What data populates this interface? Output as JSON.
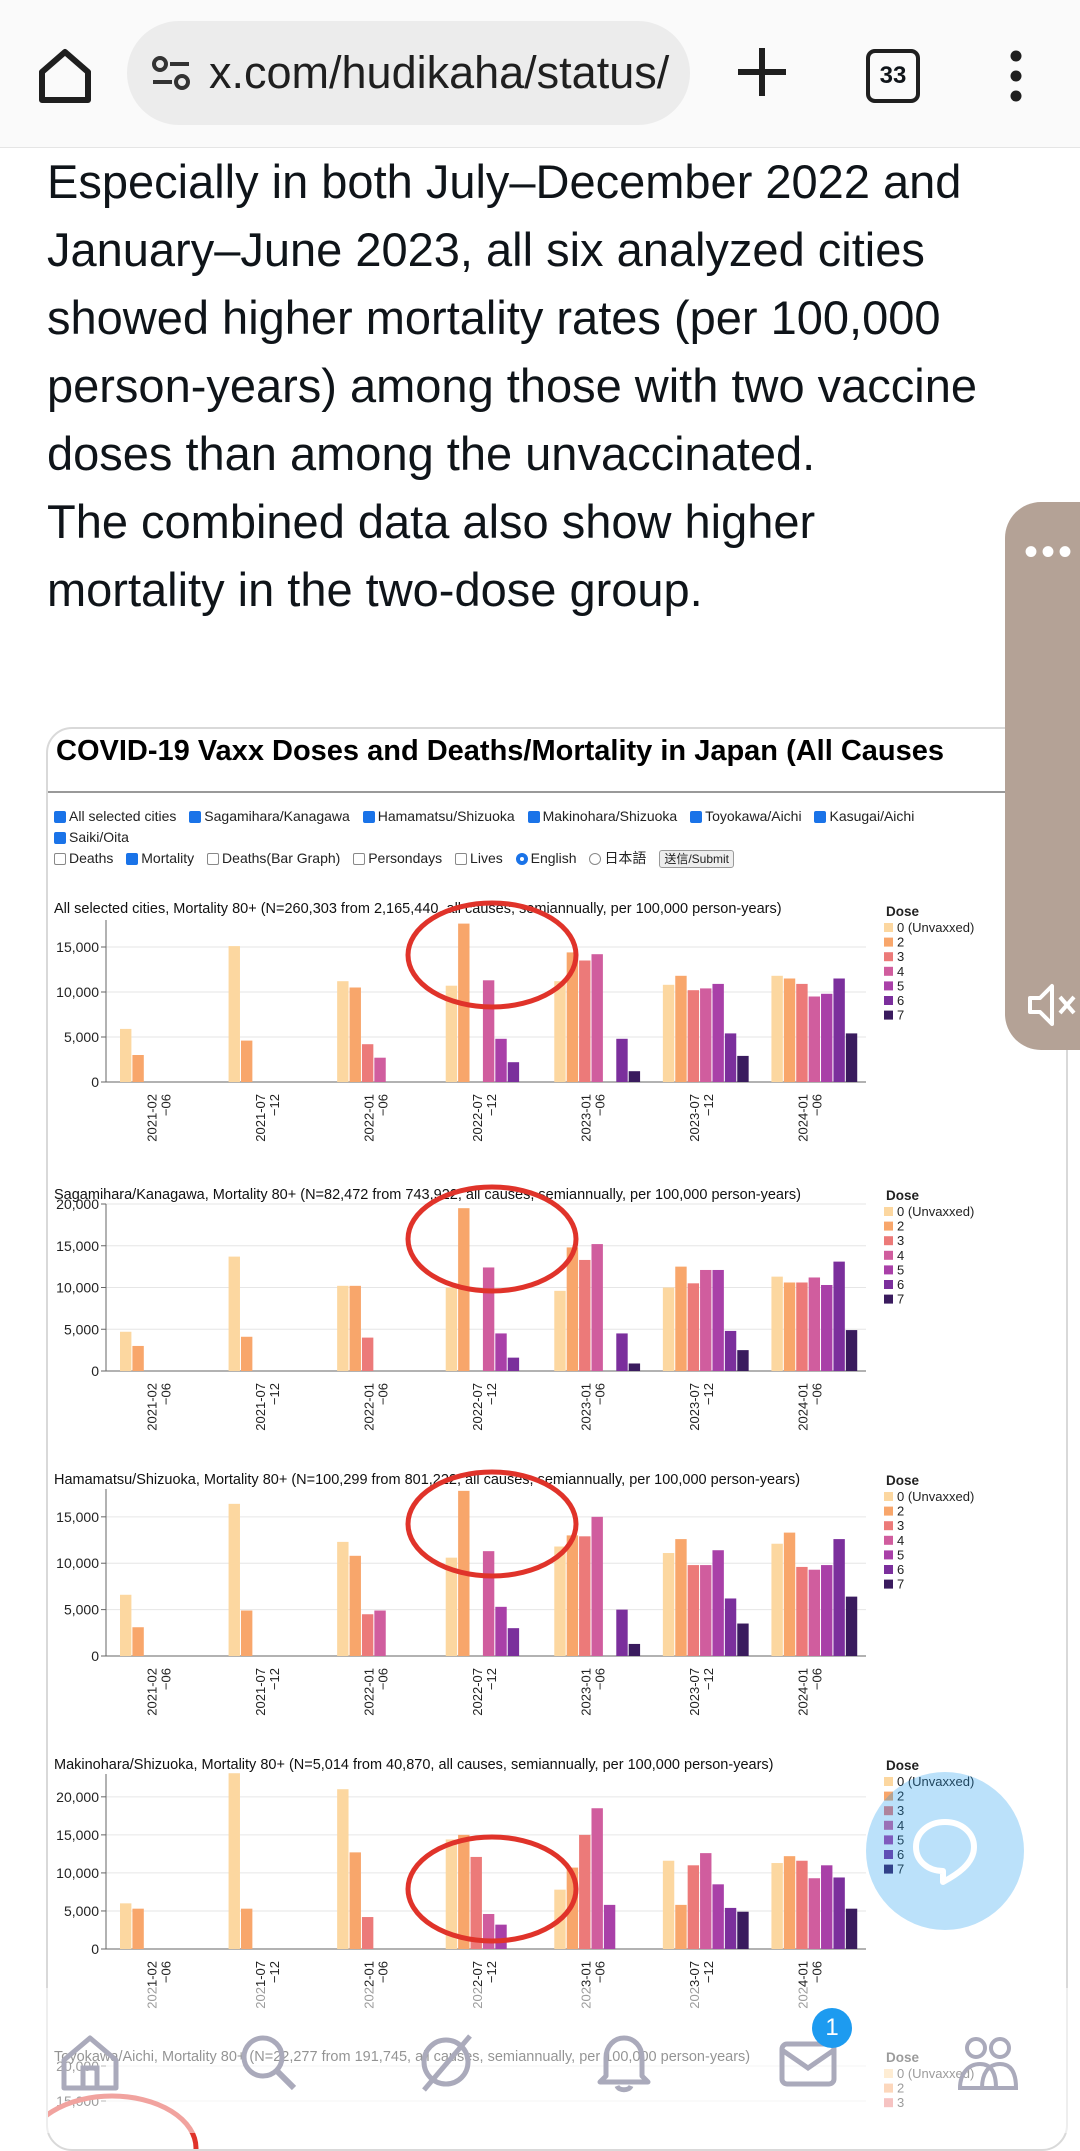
{
  "browser": {
    "url": "x.com/hudikaha/status/",
    "tab_count": "33"
  },
  "tweet": {
    "lines": [
      "Especially in both July–December 2022 and",
      "January–June 2023, all six analyzed cities",
      "showed higher mortality rates (per 100,000",
      "person-years) among those with two vaccine",
      "doses than among the unvaccinated.",
      "The combined data also show higher",
      "mortality in the two-dose group."
    ]
  },
  "image": {
    "title": "COVID-19 Vaxx Doses and Deaths/Mortality in Japan (All Causes",
    "cities": [
      {
        "label": "All selected cities",
        "checked": true
      },
      {
        "label": "Sagamihara/Kanagawa",
        "checked": true
      },
      {
        "label": "Hamamatsu/Shizuoka",
        "checked": true
      },
      {
        "label": "Makinohara/Shizuoka",
        "checked": true
      },
      {
        "label": "Toyokawa/Aichi",
        "checked": true
      },
      {
        "label": "Kasugai/Aichi",
        "checked": true
      },
      {
        "label": "Saiki/Oita",
        "checked": true
      }
    ],
    "options": [
      {
        "label": "Deaths",
        "checked": false
      },
      {
        "label": "Mortality",
        "checked": true
      },
      {
        "label": "Deaths(Bar Graph)",
        "checked": false
      },
      {
        "label": "Persondays",
        "checked": false
      },
      {
        "label": "Lives",
        "checked": false
      }
    ],
    "languages": [
      {
        "label": "English",
        "selected": true
      },
      {
        "label": "日本語",
        "selected": false
      }
    ],
    "submit_label": "送信/Submit"
  },
  "colors": {
    "dose": [
      "#fcd7a0",
      "#f8a66b",
      "#ec7a79",
      "#d05d9e",
      "#a940a8",
      "#7b2f9c",
      "#3a1b5e"
    ],
    "circle": "#e0332a",
    "accent": "#1d9bf0"
  },
  "chart_data": [
    {
      "type": "bar",
      "title": "All selected cities, Mortality 80+ (N=260,303 from 2,165,440, all causes, semiannually, per 100,000 person-years)",
      "categories": [
        "2021-02\n−06",
        "2021-07\n−12",
        "2022-01\n−06",
        "2022-07\n−12",
        "2023-01\n−06",
        "2023-07\n−12",
        "2024-01\n−06"
      ],
      "yticks": [
        "0",
        "5,000",
        "10,000",
        "15,000"
      ],
      "ylim": [
        0,
        18000
      ],
      "legend_title": "Dose",
      "legend": [
        "0 (Unvaxxed)",
        "2",
        "3",
        "4",
        "5",
        "6",
        "7"
      ],
      "series": [
        {
          "name": "0 (Unvaxxed)",
          "values": [
            5900,
            15100,
            11200,
            10700,
            11200,
            10800,
            11800
          ]
        },
        {
          "name": "2",
          "values": [
            3000,
            4600,
            10500,
            17600,
            14400,
            11800,
            11500
          ]
        },
        {
          "name": "3",
          "values": [
            null,
            null,
            4200,
            null,
            13500,
            10200,
            10900
          ]
        },
        {
          "name": "4",
          "values": [
            null,
            null,
            2700,
            11300,
            14200,
            10400,
            9500
          ]
        },
        {
          "name": "5",
          "values": [
            null,
            null,
            null,
            4800,
            null,
            10900,
            9800
          ]
        },
        {
          "name": "6",
          "values": [
            null,
            null,
            null,
            2200,
            4800,
            5400,
            11500
          ]
        },
        {
          "name": "7",
          "values": [
            null,
            null,
            null,
            null,
            1200,
            2900,
            5400
          ]
        }
      ],
      "circle_group": 3
    },
    {
      "type": "bar",
      "title": "Sagamihara/Kanagawa, Mortality 80+ (N=82,472 from 743,922, all causes, semiannually, per 100,000 person-years)",
      "categories": [
        "2021-02\n−06",
        "2021-07\n−12",
        "2022-01\n−06",
        "2022-07\n−12",
        "2023-01\n−06",
        "2023-07\n−12",
        "2024-01\n−06"
      ],
      "yticks": [
        "0",
        "5,000",
        "10,000",
        "15,000",
        "20,000"
      ],
      "ylim": [
        0,
        20000
      ],
      "legend_title": "Dose",
      "legend": [
        "0 (Unvaxxed)",
        "2",
        "3",
        "4",
        "5",
        "6",
        "7"
      ],
      "series": [
        {
          "name": "0 (Unvaxxed)",
          "values": [
            4700,
            13700,
            10200,
            10000,
            9600,
            10000,
            11300
          ]
        },
        {
          "name": "2",
          "values": [
            3000,
            4100,
            10200,
            19500,
            14800,
            12500,
            10600
          ]
        },
        {
          "name": "3",
          "values": [
            null,
            null,
            4000,
            null,
            13300,
            10500,
            10600
          ]
        },
        {
          "name": "4",
          "values": [
            null,
            null,
            null,
            12400,
            15200,
            12100,
            11200
          ]
        },
        {
          "name": "5",
          "values": [
            null,
            null,
            null,
            4500,
            null,
            12100,
            10300
          ]
        },
        {
          "name": "6",
          "values": [
            null,
            null,
            null,
            1600,
            4500,
            4800,
            13100
          ]
        },
        {
          "name": "7",
          "values": [
            null,
            null,
            null,
            null,
            900,
            2500,
            4900
          ]
        }
      ],
      "circle_group": 3
    },
    {
      "type": "bar",
      "title": "Hamamatsu/Shizuoka, Mortality 80+ (N=100,299 from 801,222, all causes, semiannually, per 100,000 person-years)",
      "categories": [
        "2021-02\n−06",
        "2021-07\n−12",
        "2022-01\n−06",
        "2022-07\n−12",
        "2023-01\n−06",
        "2023-07\n−12",
        "2024-01\n−06"
      ],
      "yticks": [
        "0",
        "5,000",
        "10,000",
        "15,000"
      ],
      "ylim": [
        0,
        18000
      ],
      "legend_title": "Dose",
      "legend": [
        "0 (Unvaxxed)",
        "2",
        "3",
        "4",
        "5",
        "6",
        "7"
      ],
      "series": [
        {
          "name": "0 (Unvaxxed)",
          "values": [
            6600,
            16400,
            12300,
            10600,
            11800,
            11100,
            12100
          ]
        },
        {
          "name": "2",
          "values": [
            3100,
            4900,
            10800,
            17800,
            13000,
            12600,
            13300
          ]
        },
        {
          "name": "3",
          "values": [
            null,
            null,
            4500,
            null,
            12900,
            9800,
            9600
          ]
        },
        {
          "name": "4",
          "values": [
            null,
            null,
            4900,
            11300,
            15000,
            9800,
            9300
          ]
        },
        {
          "name": "5",
          "values": [
            null,
            null,
            null,
            5300,
            null,
            11400,
            9800
          ]
        },
        {
          "name": "6",
          "values": [
            null,
            null,
            null,
            3000,
            5000,
            6200,
            12600
          ]
        },
        {
          "name": "7",
          "values": [
            null,
            null,
            null,
            null,
            1300,
            3500,
            6400
          ]
        }
      ],
      "circle_group": 3
    },
    {
      "type": "bar",
      "title": "Makinohara/Shizuoka, Mortality 80+ (N=5,014 from 40,870, all causes, semiannually, per 100,000 person-years)",
      "categories": [
        "2021-02\n−06",
        "2021-07\n−12",
        "2022-01\n−06",
        "2022-07\n−12",
        "2023-01\n−06",
        "2023-07\n−12",
        "2024-01\n−06"
      ],
      "yticks": [
        "0",
        "5,000",
        "10,000",
        "15,000",
        "20,000"
      ],
      "ylim": [
        0,
        23000
      ],
      "legend_title": "Dose",
      "legend": [
        "0 (Unvaxxed)",
        "2",
        "3",
        "4",
        "5",
        "6",
        "7"
      ],
      "series": [
        {
          "name": "0 (Unvaxxed)",
          "values": [
            6000,
            23100,
            21000,
            14400,
            7800,
            11600,
            11300
          ]
        },
        {
          "name": "2",
          "values": [
            5300,
            5300,
            12700,
            15000,
            10700,
            5800,
            12200
          ]
        },
        {
          "name": "3",
          "values": [
            null,
            null,
            4200,
            12100,
            15000,
            11000,
            11600
          ]
        },
        {
          "name": "4",
          "values": [
            null,
            null,
            null,
            4600,
            18500,
            12600,
            9300
          ]
        },
        {
          "name": "5",
          "values": [
            null,
            null,
            null,
            3200,
            5800,
            8500,
            11000
          ]
        },
        {
          "name": "6",
          "values": [
            null,
            null,
            null,
            null,
            null,
            5400,
            9400
          ]
        },
        {
          "name": "7",
          "values": [
            null,
            null,
            null,
            null,
            null,
            4900,
            5300
          ]
        }
      ],
      "circle_group": 3
    },
    {
      "type": "bar",
      "title": "Toyokawa/Aichi, Mortality 80+ (N=22,277 from 191,745, all causes, semiannually, per 100,000 person-years)",
      "categories": [],
      "yticks": [
        "15,000",
        "20,000"
      ],
      "ylim": [
        0,
        20000
      ],
      "legend_title": "Dose",
      "legend": [
        "0 (Unvaxxed)",
        "2",
        "3"
      ],
      "series": [],
      "circle_group": 3
    }
  ],
  "bottom_nav": {
    "items": [
      "home-icon",
      "search-icon",
      "grok-icon",
      "notifications-icon",
      "messages-icon",
      "communities-icon"
    ],
    "messages_badge": "1"
  }
}
